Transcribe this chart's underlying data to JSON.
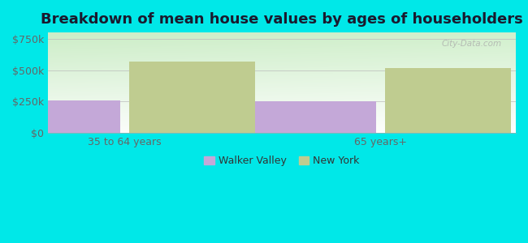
{
  "title": "Breakdown of mean house values by ages of householders",
  "categories": [
    "35 to 64 years",
    "65 years+"
  ],
  "series": {
    "Walker Valley": [
      262000,
      255000
    ],
    "New York": [
      570000,
      520000
    ]
  },
  "bar_colors": {
    "Walker Valley": "#c4a8d8",
    "New York": "#bfcc90"
  },
  "ylim": [
    0,
    800000
  ],
  "yticks": [
    0,
    250000,
    500000,
    750000
  ],
  "ytick_labels": [
    "$0",
    "$250k",
    "$500k",
    "$750k"
  ],
  "background_color": "#00e8e8",
  "title_fontsize": 13,
  "bar_width": 0.28,
  "watermark": "City-Data.com",
  "tick_label_color": "#666666",
  "title_color": "#1a1a2e"
}
